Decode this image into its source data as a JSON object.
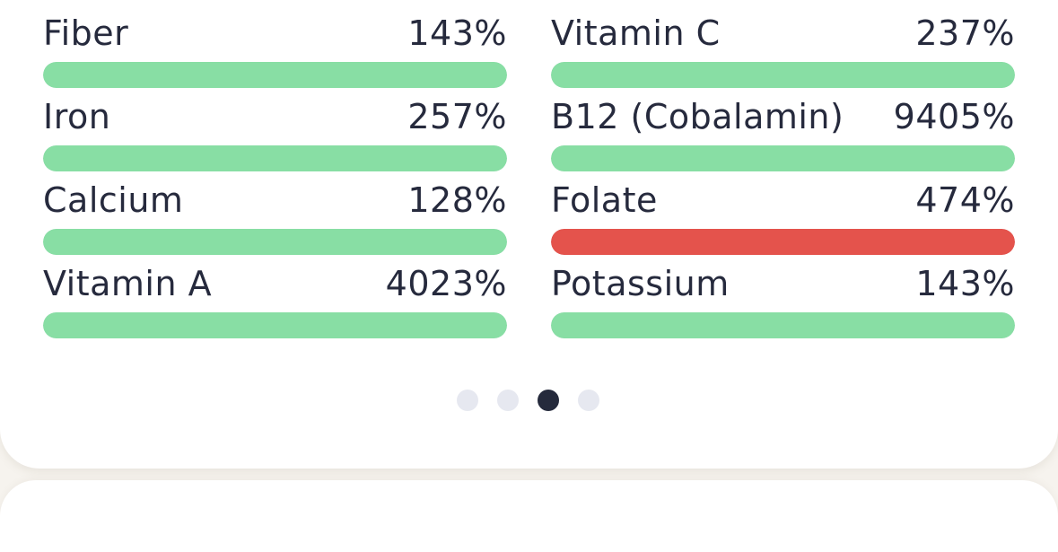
{
  "colors": {
    "ok": "#88dea4",
    "warn": "#e4534c",
    "dot_inactive": "#e6e8f0",
    "dot_active": "#252a3c"
  },
  "nutrients": [
    {
      "name": "Fiber",
      "percent": "143%",
      "status": "ok",
      "fill_fraction": 1.0
    },
    {
      "name": "Vitamin C",
      "percent": "237%",
      "status": "ok",
      "fill_fraction": 1.0
    },
    {
      "name": "Iron",
      "percent": "257%",
      "status": "ok",
      "fill_fraction": 1.0
    },
    {
      "name": "B12 (Cobalamin)",
      "percent": "9405%",
      "status": "ok",
      "fill_fraction": 1.0
    },
    {
      "name": "Calcium",
      "percent": "128%",
      "status": "ok",
      "fill_fraction": 1.0
    },
    {
      "name": "Folate",
      "percent": "474%",
      "status": "warn",
      "fill_fraction": 1.0
    },
    {
      "name": "Vitamin A",
      "percent": "4023%",
      "status": "ok",
      "fill_fraction": 1.0
    },
    {
      "name": "Potassium",
      "percent": "143%",
      "status": "ok",
      "fill_fraction": 1.0
    }
  ],
  "pagination": {
    "total": 4,
    "active_index": 2
  }
}
